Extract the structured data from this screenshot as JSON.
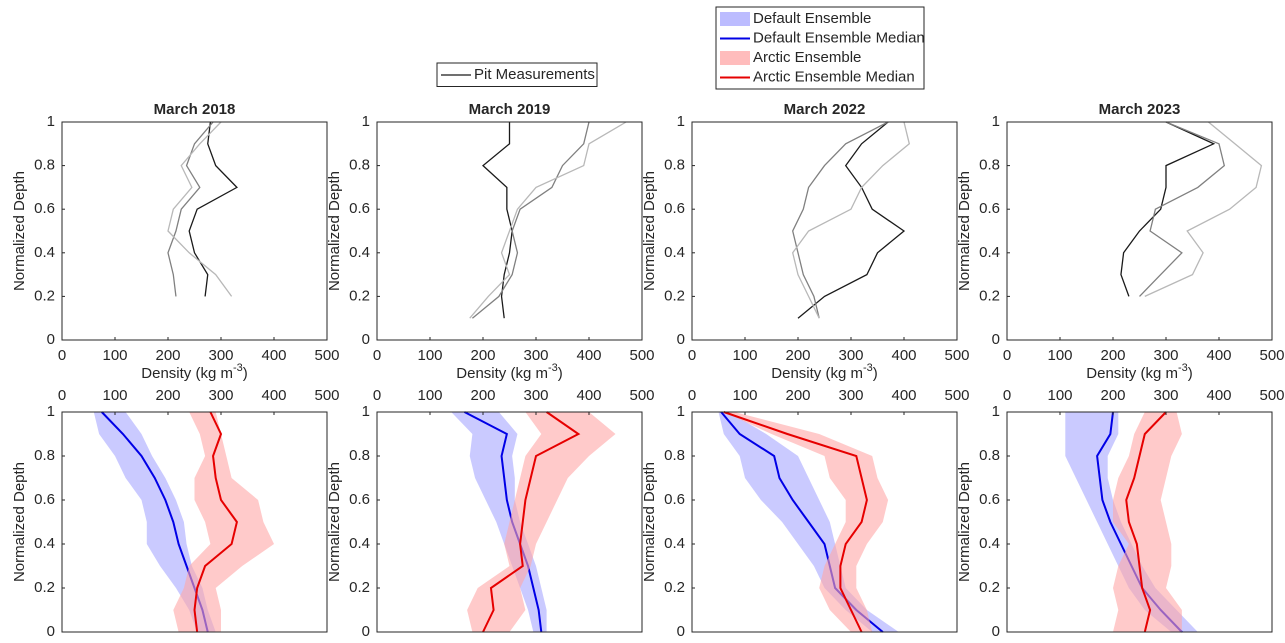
{
  "chart_data": [
    {
      "type": "line",
      "title": "March 2018",
      "xlabel": {
        "text": "Density (kg m",
        "sup": "-3",
        "end": ")"
      },
      "ylabel": "Normalized Depth",
      "xlim": [
        0,
        500
      ],
      "xticks": [
        0,
        100,
        200,
        300,
        400,
        500
      ],
      "ylim": [
        0,
        1
      ],
      "yticks": [
        0,
        0.2,
        0.4,
        0.6,
        0.8,
        1
      ],
      "xaxis": "bottom",
      "depth": [
        0.2,
        0.3,
        0.4,
        0.5,
        0.6,
        0.7,
        0.8,
        0.9,
        1.0
      ],
      "series": [
        {
          "name": "Pit Measurements",
          "color": "#1a1a1a",
          "values": [
            270,
            275,
            250,
            240,
            255,
            330,
            290,
            275,
            280
          ]
        },
        {
          "color": "#808080",
          "values": [
            215,
            210,
            200,
            215,
            225,
            260,
            235,
            250,
            285
          ]
        },
        {
          "color": "#b8b8b8",
          "values": [
            320,
            290,
            240,
            200,
            210,
            245,
            225,
            260,
            300
          ]
        }
      ]
    },
    {
      "type": "line",
      "title": "March 2019",
      "xlabel": {
        "text": "Density (kg m",
        "sup": "-3",
        "end": ")"
      },
      "ylabel": "Normalized Depth",
      "xlim": [
        0,
        500
      ],
      "xticks": [
        0,
        100,
        200,
        300,
        400,
        500
      ],
      "ylim": [
        0,
        1
      ],
      "yticks": [
        0,
        0.2,
        0.4,
        0.6,
        0.8,
        1
      ],
      "xaxis": "bottom",
      "depth": [
        0.1,
        0.2,
        0.3,
        0.4,
        0.5,
        0.6,
        0.7,
        0.8,
        0.9,
        1.0
      ],
      "series": [
        {
          "color": "#1a1a1a",
          "values": [
            240,
            235,
            240,
            250,
            255,
            245,
            245,
            200,
            250,
            250
          ]
        },
        {
          "color": "#808080",
          "values": [
            180,
            230,
            255,
            265,
            255,
            270,
            330,
            350,
            390,
            400
          ]
        },
        {
          "color": "#b8b8b8",
          "values": [
            175,
            210,
            250,
            235,
            250,
            265,
            300,
            390,
            400,
            470
          ]
        }
      ]
    },
    {
      "type": "line",
      "title": "March 2022",
      "xlabel": {
        "text": "Density (kg m",
        "sup": "-3",
        "end": ")"
      },
      "ylabel": "Normalized Depth",
      "xlim": [
        0,
        500
      ],
      "xticks": [
        0,
        100,
        200,
        300,
        400,
        500
      ],
      "ylim": [
        0,
        1
      ],
      "yticks": [
        0,
        0.2,
        0.4,
        0.6,
        0.8,
        1
      ],
      "xaxis": "bottom",
      "depth": [
        0.1,
        0.2,
        0.3,
        0.4,
        0.5,
        0.6,
        0.7,
        0.8,
        0.9,
        1.0
      ],
      "series": [
        {
          "color": "#1a1a1a",
          "values": [
            200,
            250,
            330,
            350,
            400,
            340,
            320,
            290,
            320,
            370
          ]
        },
        {
          "color": "#808080",
          "values": [
            240,
            230,
            210,
            200,
            190,
            210,
            220,
            250,
            290,
            370
          ]
        },
        {
          "color": "#b8b8b8",
          "values": [
            240,
            220,
            200,
            190,
            220,
            300,
            320,
            360,
            410,
            400
          ]
        }
      ]
    },
    {
      "type": "line",
      "title": "March 2023",
      "xlabel": {
        "text": "Density (kg m",
        "sup": "-3",
        "end": ")"
      },
      "ylabel": "Normalized Depth",
      "xlim": [
        0,
        500
      ],
      "xticks": [
        0,
        100,
        200,
        300,
        400,
        500
      ],
      "ylim": [
        0,
        1
      ],
      "yticks": [
        0,
        0.2,
        0.4,
        0.6,
        0.8,
        1
      ],
      "xaxis": "bottom",
      "depth": [
        0.2,
        0.3,
        0.4,
        0.5,
        0.6,
        0.7,
        0.8,
        0.9,
        1.0
      ],
      "series": [
        {
          "color": "#1a1a1a",
          "values": [
            230,
            215,
            220,
            250,
            290,
            300,
            300,
            390,
            300
          ]
        },
        {
          "color": "#808080",
          "values": [
            250,
            290,
            330,
            270,
            280,
            360,
            410,
            400,
            300
          ]
        },
        {
          "color": "#b8b8b8",
          "values": [
            260,
            350,
            370,
            340,
            420,
            470,
            480,
            430,
            380
          ]
        }
      ]
    },
    {
      "type": "line",
      "ylabel": "Normalized Depth",
      "xlim": [
        0,
        500
      ],
      "xticks": [
        0,
        100,
        200,
        300,
        400,
        500
      ],
      "ylim": [
        0,
        1
      ],
      "yticks": [
        0,
        0.2,
        0.4,
        0.6,
        0.8,
        1
      ],
      "xaxis": "top",
      "depth": [
        0,
        0.1,
        0.2,
        0.3,
        0.4,
        0.5,
        0.6,
        0.7,
        0.8,
        0.9,
        1.0
      ],
      "series": [
        {
          "name": "Default Ensemble",
          "kind": "band",
          "color": "#a6a6ff",
          "low": [
            255,
            240,
            215,
            185,
            160,
            160,
            150,
            120,
            100,
            70,
            60
          ],
          "high": [
            290,
            275,
            265,
            245,
            235,
            230,
            215,
            195,
            170,
            150,
            120
          ]
        },
        {
          "name": "Default Ensemble Median",
          "color": "#0000e6",
          "values": [
            275,
            265,
            250,
            235,
            220,
            210,
            195,
            175,
            150,
            115,
            75
          ]
        },
        {
          "name": "Arctic Ensemble",
          "kind": "band",
          "color": "#ffa6a6",
          "low": [
            220,
            210,
            230,
            240,
            280,
            270,
            250,
            250,
            270,
            260,
            240
          ],
          "high": [
            300,
            300,
            290,
            340,
            400,
            380,
            370,
            320,
            310,
            300,
            290
          ]
        },
        {
          "name": "Arctic Ensemble Median",
          "color": "#e60000",
          "values": [
            255,
            250,
            255,
            270,
            320,
            330,
            300,
            290,
            285,
            300,
            280
          ]
        }
      ]
    },
    {
      "type": "line",
      "ylabel": "Normalized Depth",
      "xlim": [
        0,
        500
      ],
      "xticks": [
        0,
        100,
        200,
        300,
        400,
        500
      ],
      "ylim": [
        0,
        1
      ],
      "yticks": [
        0,
        0.2,
        0.4,
        0.6,
        0.8,
        1
      ],
      "xaxis": "top",
      "depth": [
        0,
        0.1,
        0.2,
        0.3,
        0.4,
        0.5,
        0.6,
        0.7,
        0.8,
        0.9,
        1.0
      ],
      "series": [
        {
          "kind": "band",
          "color": "#a6a6ff",
          "low": [
            295,
            285,
            270,
            255,
            240,
            225,
            205,
            185,
            175,
            180,
            140
          ],
          "high": [
            320,
            320,
            310,
            300,
            285,
            270,
            260,
            260,
            255,
            265,
            230
          ]
        },
        {
          "color": "#0000e6",
          "values": [
            310,
            305,
            295,
            285,
            270,
            255,
            245,
            240,
            235,
            245,
            165
          ]
        },
        {
          "kind": "band",
          "color": "#ffa6a6",
          "low": [
            180,
            170,
            190,
            250,
            240,
            250,
            260,
            270,
            280,
            310,
            280
          ],
          "high": [
            250,
            280,
            270,
            290,
            300,
            320,
            340,
            360,
            400,
            450,
            400
          ]
        },
        {
          "color": "#e60000",
          "values": [
            200,
            220,
            215,
            275,
            270,
            275,
            280,
            290,
            300,
            380,
            320
          ]
        }
      ]
    },
    {
      "type": "line",
      "ylabel": "Normalized Depth",
      "xlim": [
        0,
        500
      ],
      "xticks": [
        0,
        100,
        200,
        300,
        400,
        500
      ],
      "ylim": [
        0,
        1
      ],
      "yticks": [
        0,
        0.2,
        0.4,
        0.6,
        0.8,
        1
      ],
      "xaxis": "top",
      "depth": [
        0,
        0.1,
        0.2,
        0.3,
        0.4,
        0.5,
        0.6,
        0.7,
        0.8,
        0.9,
        1.0
      ],
      "series": [
        {
          "kind": "band",
          "color": "#a6a6ff",
          "low": [
            340,
            290,
            250,
            230,
            200,
            170,
            130,
            100,
            90,
            60,
            50
          ],
          "high": [
            390,
            330,
            290,
            280,
            270,
            260,
            240,
            220,
            200,
            140,
            70
          ]
        },
        {
          "color": "#0000e6",
          "values": [
            360,
            310,
            270,
            260,
            250,
            220,
            190,
            165,
            155,
            90,
            55
          ]
        },
        {
          "kind": "band",
          "color": "#ffa6a6",
          "low": [
            300,
            260,
            240,
            250,
            270,
            290,
            290,
            260,
            250,
            150,
            60
          ],
          "high": [
            340,
            330,
            310,
            310,
            330,
            360,
            370,
            350,
            340,
            240,
            80
          ]
        },
        {
          "color": "#e60000",
          "values": [
            320,
            300,
            280,
            280,
            290,
            320,
            330,
            320,
            310,
            180,
            60
          ]
        }
      ]
    },
    {
      "type": "line",
      "ylabel": "Normalized Depth",
      "xlim": [
        0,
        500
      ],
      "xticks": [
        0,
        100,
        200,
        300,
        400,
        500
      ],
      "ylim": [
        0,
        1
      ],
      "yticks": [
        0,
        0.2,
        0.4,
        0.6,
        0.8,
        1
      ],
      "xaxis": "top",
      "depth": [
        0,
        0.1,
        0.2,
        0.3,
        0.4,
        0.5,
        0.6,
        0.7,
        0.8,
        0.9,
        1.0
      ],
      "series": [
        {
          "kind": "band",
          "color": "#a6a6ff",
          "low": [
            310,
            260,
            230,
            210,
            190,
            170,
            150,
            130,
            110,
            110,
            110
          ],
          "high": [
            360,
            320,
            280,
            255,
            235,
            215,
            200,
            190,
            190,
            210,
            210
          ]
        },
        {
          "color": "#0000e6",
          "values": [
            330,
            290,
            255,
            235,
            215,
            195,
            180,
            175,
            170,
            195,
            200
          ]
        },
        {
          "kind": "band",
          "color": "#ffa6a6",
          "low": [
            200,
            210,
            200,
            210,
            230,
            200,
            200,
            210,
            230,
            240,
            260
          ],
          "high": [
            330,
            330,
            300,
            310,
            310,
            300,
            290,
            300,
            310,
            330,
            320
          ]
        },
        {
          "color": "#e60000",
          "values": [
            260,
            270,
            255,
            250,
            245,
            230,
            225,
            240,
            250,
            260,
            300
          ]
        }
      ]
    }
  ]
}
